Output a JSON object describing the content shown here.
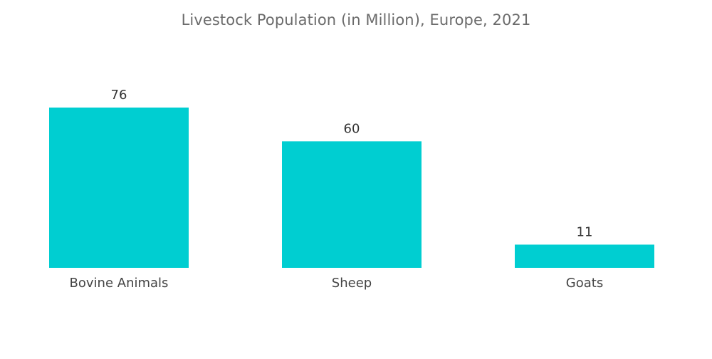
{
  "chart_data": {
    "type": "bar",
    "title": "Livestock Population (in Million), Europe, 2021",
    "xlabel": "",
    "ylabel": "",
    "categories": [
      "Bovine Animals",
      "Sheep",
      "Goats"
    ],
    "values": [
      76,
      60,
      11
    ],
    "value_labels": [
      "76",
      "60",
      "11"
    ],
    "ylim": [
      0,
      76
    ],
    "grid": false,
    "legend": "none",
    "bar_color": "#00CED1"
  }
}
